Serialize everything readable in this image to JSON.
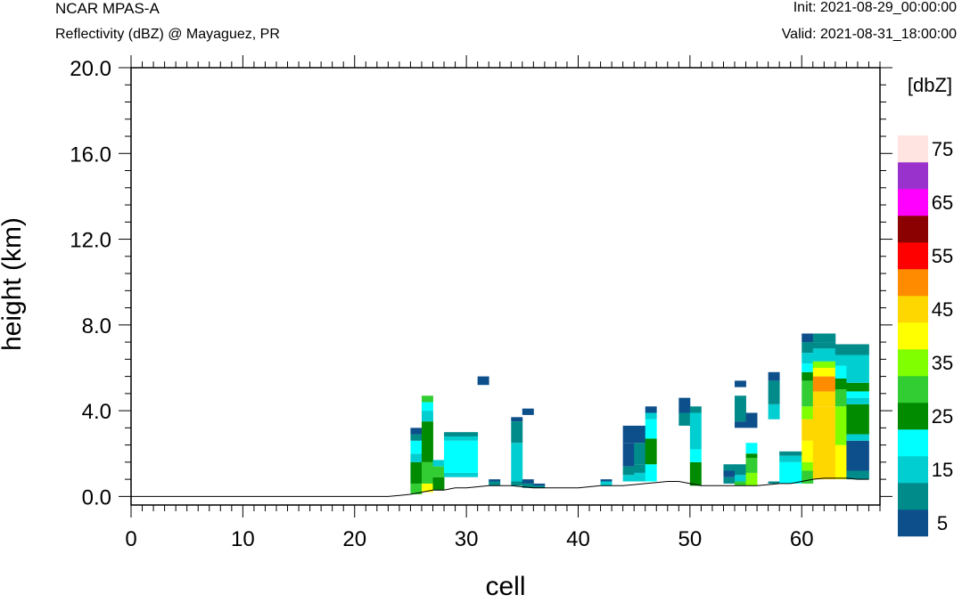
{
  "header": {
    "left_title": "NCAR MPAS-A",
    "left_subtitle": "Reflectivity (dBZ) @ Mayaguez, PR",
    "right_init": "Init: 2021-08-29_00:00:00",
    "right_valid": "Valid: 2021-08-31_18:00:00"
  },
  "chart_data": {
    "type": "heatmap",
    "xlabel": "cell",
    "ylabel": "height (km)",
    "xlim": [
      0,
      67
    ],
    "ylim": [
      -0.4,
      20.0
    ],
    "x_ticks": [
      "0",
      "10",
      "20",
      "30",
      "40",
      "50",
      "60"
    ],
    "y_ticks": [
      "0.0",
      "4.0",
      "8.0",
      "12.0",
      "16.0",
      "20.0"
    ],
    "colorbar": {
      "unit_label": "[dbZ]",
      "labels": [
        "5",
        "15",
        "25",
        "35",
        "45",
        "55",
        "65",
        "75"
      ],
      "levels": [
        5,
        10,
        15,
        20,
        25,
        30,
        35,
        40,
        45,
        50,
        55,
        60,
        65,
        70,
        75
      ],
      "colors": [
        "#0d4f8b",
        "#008b8b",
        "#00ced1",
        "#00ffff",
        "#008b00",
        "#32cd32",
        "#7fff00",
        "#ffff00",
        "#ffd700",
        "#ff8c00",
        "#ff0000",
        "#8b0000",
        "#ff00ff",
        "#9932cc",
        "#ffe4e1"
      ]
    },
    "terrain_height_km": [
      0,
      0,
      0,
      0,
      0,
      0,
      0,
      0,
      0,
      0,
      0,
      0,
      0,
      0,
      0,
      0,
      0,
      0,
      0,
      0,
      0,
      0,
      0,
      0,
      0.05,
      0.1,
      0.2,
      0.3,
      0.3,
      0.4,
      0.4,
      0.45,
      0.5,
      0.5,
      0.5,
      0.45,
      0.4,
      0.4,
      0.4,
      0.4,
      0.4,
      0.45,
      0.5,
      0.5,
      0.5,
      0.55,
      0.6,
      0.65,
      0.7,
      0.7,
      0.6,
      0.5,
      0.5,
      0.5,
      0.5,
      0.5,
      0.5,
      0.55,
      0.6,
      0.6,
      0.7,
      0.8,
      0.85,
      0.85,
      0.85,
      0.8,
      0.8
    ],
    "columns": [
      {
        "cell": 25,
        "layers": [
          [
            0.1,
            0.6,
            30
          ],
          [
            0.6,
            1.6,
            25
          ],
          [
            1.6,
            2.0,
            15
          ],
          [
            2.0,
            2.6,
            20
          ],
          [
            2.6,
            2.9,
            10
          ],
          [
            2.9,
            3.2,
            5
          ]
        ]
      },
      {
        "cell": 26,
        "layers": [
          [
            0.2,
            0.6,
            40
          ],
          [
            0.6,
            1.6,
            30
          ],
          [
            1.6,
            3.5,
            25
          ],
          [
            3.5,
            4.0,
            15
          ],
          [
            4.0,
            4.4,
            20
          ],
          [
            4.4,
            4.7,
            30
          ]
        ]
      },
      {
        "cell": 27,
        "layers": [
          [
            0.3,
            0.9,
            25
          ],
          [
            0.9,
            1.4,
            30
          ],
          [
            1.4,
            1.7,
            15
          ]
        ]
      },
      {
        "cell": 28,
        "layers": [
          [
            0.9,
            1.1,
            15
          ],
          [
            1.1,
            2.6,
            20
          ],
          [
            2.6,
            2.8,
            15
          ],
          [
            2.8,
            3.0,
            10
          ]
        ]
      },
      {
        "cell": 29,
        "layers": [
          [
            0.9,
            1.1,
            15
          ],
          [
            1.1,
            2.6,
            20
          ],
          [
            2.6,
            2.8,
            15
          ],
          [
            2.8,
            3.0,
            10
          ]
        ]
      },
      {
        "cell": 30,
        "layers": [
          [
            0.9,
            1.1,
            15
          ],
          [
            1.1,
            2.6,
            20
          ],
          [
            2.6,
            2.8,
            15
          ],
          [
            2.8,
            3.0,
            10
          ]
        ]
      },
      {
        "cell": 31,
        "layers": [
          [
            5.2,
            5.6,
            5
          ]
        ]
      },
      {
        "cell": 32,
        "layers": [
          [
            0.5,
            0.7,
            10
          ],
          [
            0.7,
            0.8,
            5
          ]
        ]
      },
      {
        "cell": 34,
        "layers": [
          [
            0.5,
            0.7,
            10
          ],
          [
            0.7,
            2.5,
            15
          ],
          [
            2.5,
            3.5,
            10
          ],
          [
            3.5,
            3.7,
            5
          ]
        ]
      },
      {
        "cell": 35,
        "layers": [
          [
            0.4,
            0.6,
            10
          ],
          [
            0.6,
            0.8,
            5
          ],
          [
            3.8,
            4.1,
            5
          ]
        ]
      },
      {
        "cell": 36,
        "layers": [
          [
            0.4,
            0.5,
            10
          ],
          [
            0.5,
            0.6,
            5
          ]
        ]
      },
      {
        "cell": 42,
        "layers": [
          [
            0.5,
            0.7,
            15
          ],
          [
            0.7,
            0.8,
            5
          ]
        ]
      },
      {
        "cell": 44,
        "layers": [
          [
            0.7,
            1.0,
            15
          ],
          [
            1.0,
            1.4,
            10
          ],
          [
            1.4,
            2.5,
            5
          ],
          [
            2.5,
            3.3,
            5
          ]
        ]
      },
      {
        "cell": 45,
        "layers": [
          [
            0.7,
            1.1,
            15
          ],
          [
            1.1,
            1.5,
            10
          ],
          [
            1.5,
            2.5,
            10
          ],
          [
            2.5,
            3.3,
            5
          ]
        ]
      },
      {
        "cell": 46,
        "layers": [
          [
            0.7,
            1.5,
            20
          ],
          [
            1.5,
            2.7,
            25
          ],
          [
            2.7,
            3.6,
            20
          ],
          [
            3.6,
            3.9,
            15
          ],
          [
            3.9,
            4.2,
            5
          ]
        ]
      },
      {
        "cell": 49,
        "layers": [
          [
            3.3,
            3.9,
            10
          ],
          [
            3.9,
            4.6,
            5
          ]
        ]
      },
      {
        "cell": 50,
        "layers": [
          [
            0.5,
            1.6,
            25
          ],
          [
            1.6,
            2.2,
            20
          ],
          [
            2.2,
            3.9,
            15
          ],
          [
            3.9,
            4.2,
            10
          ]
        ]
      },
      {
        "cell": 53,
        "layers": [
          [
            0.6,
            0.9,
            10
          ],
          [
            0.9,
            1.2,
            5
          ],
          [
            1.2,
            1.5,
            10
          ]
        ]
      },
      {
        "cell": 54,
        "layers": [
          [
            0.5,
            0.7,
            30
          ],
          [
            0.7,
            1.0,
            15
          ],
          [
            1.0,
            1.5,
            10
          ],
          [
            3.2,
            3.5,
            5
          ],
          [
            3.5,
            4.7,
            10
          ],
          [
            5.1,
            5.4,
            5
          ]
        ]
      },
      {
        "cell": 55,
        "layers": [
          [
            0.5,
            1.1,
            35
          ],
          [
            1.1,
            1.8,
            30
          ],
          [
            1.8,
            2.0,
            25
          ],
          [
            2.0,
            2.5,
            20
          ],
          [
            3.2,
            3.9,
            5
          ]
        ]
      },
      {
        "cell": 57,
        "layers": [
          [
            0.6,
            0.7,
            10
          ],
          [
            3.6,
            4.3,
            15
          ],
          [
            4.3,
            5.4,
            10
          ],
          [
            5.4,
            5.8,
            5
          ]
        ]
      },
      {
        "cell": 58,
        "layers": [
          [
            0.6,
            1.6,
            20
          ],
          [
            1.6,
            1.9,
            15
          ],
          [
            1.9,
            2.1,
            10
          ]
        ]
      },
      {
        "cell": 59,
        "layers": [
          [
            0.6,
            1.6,
            20
          ],
          [
            1.6,
            1.9,
            15
          ],
          [
            1.9,
            2.1,
            10
          ]
        ]
      },
      {
        "cell": 60,
        "layers": [
          [
            0.6,
            1.2,
            30
          ],
          [
            1.2,
            1.6,
            35
          ],
          [
            1.6,
            2.6,
            40
          ],
          [
            2.6,
            3.6,
            45
          ],
          [
            3.6,
            4.2,
            35
          ],
          [
            4.2,
            5.4,
            30
          ],
          [
            5.4,
            5.8,
            25
          ],
          [
            5.8,
            6.2,
            20
          ],
          [
            6.2,
            6.7,
            15
          ],
          [
            6.7,
            7.2,
            10
          ],
          [
            7.2,
            7.6,
            5
          ]
        ]
      },
      {
        "cell": 61,
        "layers": [
          [
            0.8,
            4.2,
            45
          ],
          [
            4.2,
            4.9,
            45
          ],
          [
            4.9,
            5.6,
            50
          ],
          [
            5.6,
            6.0,
            40
          ],
          [
            6.0,
            6.3,
            35
          ],
          [
            6.3,
            6.9,
            15
          ],
          [
            6.9,
            7.2,
            10
          ],
          [
            7.2,
            7.6,
            10
          ]
        ]
      },
      {
        "cell": 62,
        "layers": [
          [
            0.8,
            4.2,
            45
          ],
          [
            4.2,
            4.9,
            45
          ],
          [
            4.9,
            5.6,
            50
          ],
          [
            5.6,
            6.0,
            40
          ],
          [
            6.0,
            6.3,
            35
          ],
          [
            6.3,
            6.9,
            15
          ],
          [
            6.9,
            7.2,
            10
          ],
          [
            7.2,
            7.6,
            10
          ]
        ]
      },
      {
        "cell": 63,
        "layers": [
          [
            0.8,
            2.4,
            40
          ],
          [
            2.4,
            4.2,
            35
          ],
          [
            4.2,
            5.0,
            30
          ],
          [
            5.0,
            5.5,
            25
          ],
          [
            5.5,
            6.1,
            20
          ],
          [
            6.1,
            6.6,
            15
          ],
          [
            6.6,
            7.1,
            10
          ]
        ]
      },
      {
        "cell": 64,
        "layers": [
          [
            0.8,
            1.2,
            10
          ],
          [
            1.2,
            2.6,
            5
          ],
          [
            2.6,
            2.9,
            15
          ],
          [
            2.9,
            4.3,
            25
          ],
          [
            4.3,
            4.6,
            15
          ],
          [
            4.6,
            4.9,
            20
          ],
          [
            4.9,
            5.3,
            25
          ],
          [
            5.3,
            6.6,
            15
          ],
          [
            6.6,
            7.1,
            10
          ]
        ]
      },
      {
        "cell": 65,
        "layers": [
          [
            0.8,
            1.2,
            10
          ],
          [
            1.2,
            2.6,
            5
          ],
          [
            2.6,
            2.9,
            15
          ],
          [
            2.9,
            4.3,
            25
          ],
          [
            4.3,
            4.6,
            15
          ],
          [
            4.6,
            4.9,
            20
          ],
          [
            4.9,
            5.3,
            25
          ],
          [
            5.3,
            6.6,
            15
          ],
          [
            6.6,
            7.1,
            10
          ]
        ]
      }
    ]
  }
}
